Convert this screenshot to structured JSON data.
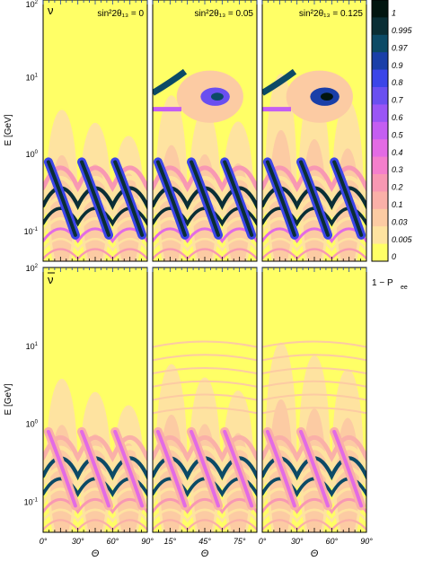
{
  "chart_data": {
    "type": "heatmap",
    "description_quantity": "1 - P_ee",
    "colorbar": {
      "levels": [
        "1",
        "0.995",
        "0.97",
        "0.9",
        "0.8",
        "0.7",
        "0.6",
        "0.5",
        "0.4",
        "0.3",
        "0.2",
        "0.1",
        "0.03",
        "0.005",
        "0"
      ],
      "colors": [
        "#021510",
        "#0a2e35",
        "#0c4a66",
        "#1a3fa8",
        "#3b45e8",
        "#6a4ff0",
        "#9a55f5",
        "#c45ef2",
        "#e36be4",
        "#f47fcc",
        "#f898b3",
        "#fab0a8",
        "#fccba3",
        "#fee3a0",
        "#ffff66"
      ],
      "label": "1 − P",
      "label_sub": "ee"
    },
    "rows": [
      {
        "label": "ν",
        "overbar": false
      },
      {
        "label": "ν",
        "overbar": true
      }
    ],
    "columns": [
      {
        "annotation": "sin²2θ₁₃ = 0",
        "sin2_2theta13": 0,
        "xticks": [
          "0°",
          "30°",
          "60°",
          "90°"
        ]
      },
      {
        "annotation": "sin²2θ₁₃ = 0.05",
        "sin2_2theta13": 0.05,
        "xticks": [
          "15°",
          "45°",
          "75°"
        ]
      },
      {
        "annotation": "sin²2θ₁₃ = 0.125",
        "sin2_2theta13": 0.125,
        "xticks": [
          "0°",
          "30°",
          "60°",
          "90°"
        ]
      }
    ],
    "ylabel": "E [GeV]",
    "ylabel_sub": "ν",
    "xlabel": "Θ",
    "xlabel_sub": "ν",
    "ylim_log10": [
      -1.4,
      2.0
    ],
    "xlim_deg": [
      0,
      90
    ],
    "yticks": [
      {
        "base": "10",
        "exp": "2",
        "log10": 2
      },
      {
        "base": "10",
        "exp": "1",
        "log10": 1
      },
      {
        "base": "10",
        "exp": "0",
        "log10": 0
      },
      {
        "base": "10",
        "exp": "-1",
        "log10": -1
      }
    ]
  }
}
